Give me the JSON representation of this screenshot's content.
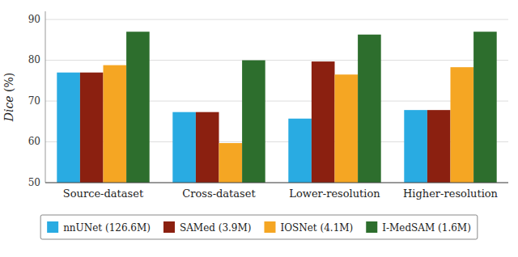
{
  "chart_data": {
    "type": "bar",
    "y_label": "Dice (%)",
    "categories": [
      "Source-dataset",
      "Cross-dataset",
      "Lower-resolution",
      "Higher-resolution"
    ],
    "series": [
      {
        "name": "nnUNet (126.6M)",
        "color": "#29ABE2",
        "values": [
          77.0,
          67.3,
          65.7,
          67.8
        ]
      },
      {
        "name": "SAMed (3.9M)",
        "color": "#8B2010",
        "values": [
          77.0,
          67.3,
          79.7,
          67.8
        ]
      },
      {
        "name": "IOSNet (4.1M)",
        "color": "#F5A623",
        "values": [
          78.8,
          59.7,
          76.5,
          78.3
        ]
      },
      {
        "name": "I-MedSAM (1.6M)",
        "color": "#2D6E2D",
        "values": [
          87.0,
          80.0,
          86.3,
          87.0
        ]
      }
    ],
    "ylim": [
      50,
      92
    ],
    "yticks": [
      50,
      60,
      70,
      80,
      90
    ],
    "grid": true,
    "legend": "bottom"
  }
}
